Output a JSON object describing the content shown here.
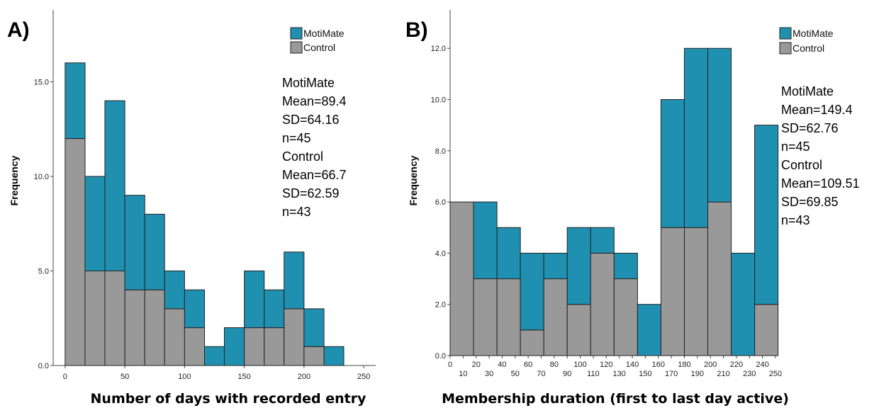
{
  "colors": {
    "motimate": "#2090b0",
    "control": "#999999",
    "edge": "#222222"
  },
  "chart_data": [
    {
      "type": "bar",
      "panel_label": "A)",
      "xlabel": "Number of days with recorded entry",
      "ylabel": "Frequency",
      "xlim": [
        -10,
        260
      ],
      "ylim": [
        0,
        18.8
      ],
      "x_ticks": [
        0,
        50,
        100,
        150,
        200,
        250
      ],
      "y_ticks": [
        0,
        5,
        10,
        15
      ],
      "y_tick_labels": [
        "0.0",
        "5.0",
        "10.0",
        "15.0"
      ],
      "bin_edges": [
        0,
        16.7,
        33.3,
        50,
        66.7,
        83.3,
        100,
        116.7,
        133.3,
        150,
        166.7,
        183.3,
        200,
        216.7,
        233.3
      ],
      "series": [
        {
          "name": "MotiMate",
          "values": [
            4,
            5,
            9,
            5,
            4,
            2,
            2,
            1,
            2,
            3,
            2,
            3,
            2,
            1
          ]
        },
        {
          "name": "Control",
          "values": [
            12,
            5,
            5,
            4,
            4,
            3,
            2,
            0,
            0,
            2,
            2,
            3,
            1,
            0
          ]
        }
      ],
      "legend": [
        "MotiMate",
        "Control"
      ],
      "legend_position": "top-right",
      "stats": [
        "MotiMate",
        "Mean=89.4",
        "SD=64.16",
        "n=45",
        "Control",
        "Mean=66.7",
        "SD=62.59",
        "n=43"
      ]
    },
    {
      "type": "bar",
      "panel_label": "B)",
      "xlabel": "Membership duration (first to last day active)",
      "ylabel": "Frequency",
      "xlim": [
        0,
        250
      ],
      "ylim": [
        0,
        13.5
      ],
      "x_ticks": [
        0,
        10,
        20,
        30,
        40,
        50,
        60,
        70,
        80,
        90,
        100,
        110,
        120,
        130,
        140,
        150,
        160,
        170,
        180,
        190,
        200,
        210,
        220,
        230,
        240,
        250
      ],
      "y_ticks": [
        0,
        2,
        4,
        6,
        8,
        10,
        12
      ],
      "y_tick_labels": [
        "0.0",
        "2.0",
        "4.0",
        "6.0",
        "8.0",
        "10.0",
        "12.0"
      ],
      "bin_edges": [
        0,
        18,
        36,
        54,
        72,
        90,
        108,
        126,
        144,
        162,
        180,
        198,
        216,
        234,
        252
      ],
      "series": [
        {
          "name": "MotiMate",
          "values": [
            0,
            3,
            2,
            3,
            1,
            3,
            1,
            1,
            2,
            5,
            7,
            6,
            4,
            7
          ]
        },
        {
          "name": "Control",
          "values": [
            6,
            3,
            3,
            1,
            3,
            2,
            4,
            3,
            0,
            5,
            5,
            6,
            0,
            2
          ]
        }
      ],
      "legend": [
        "MotiMate",
        "Control"
      ],
      "legend_position": "top-right",
      "stats": [
        "MotiMate",
        "Mean=149.4",
        "SD=62.76",
        "n=45",
        "Control",
        "Mean=109.51",
        "SD=69.85",
        "n=43"
      ]
    }
  ]
}
